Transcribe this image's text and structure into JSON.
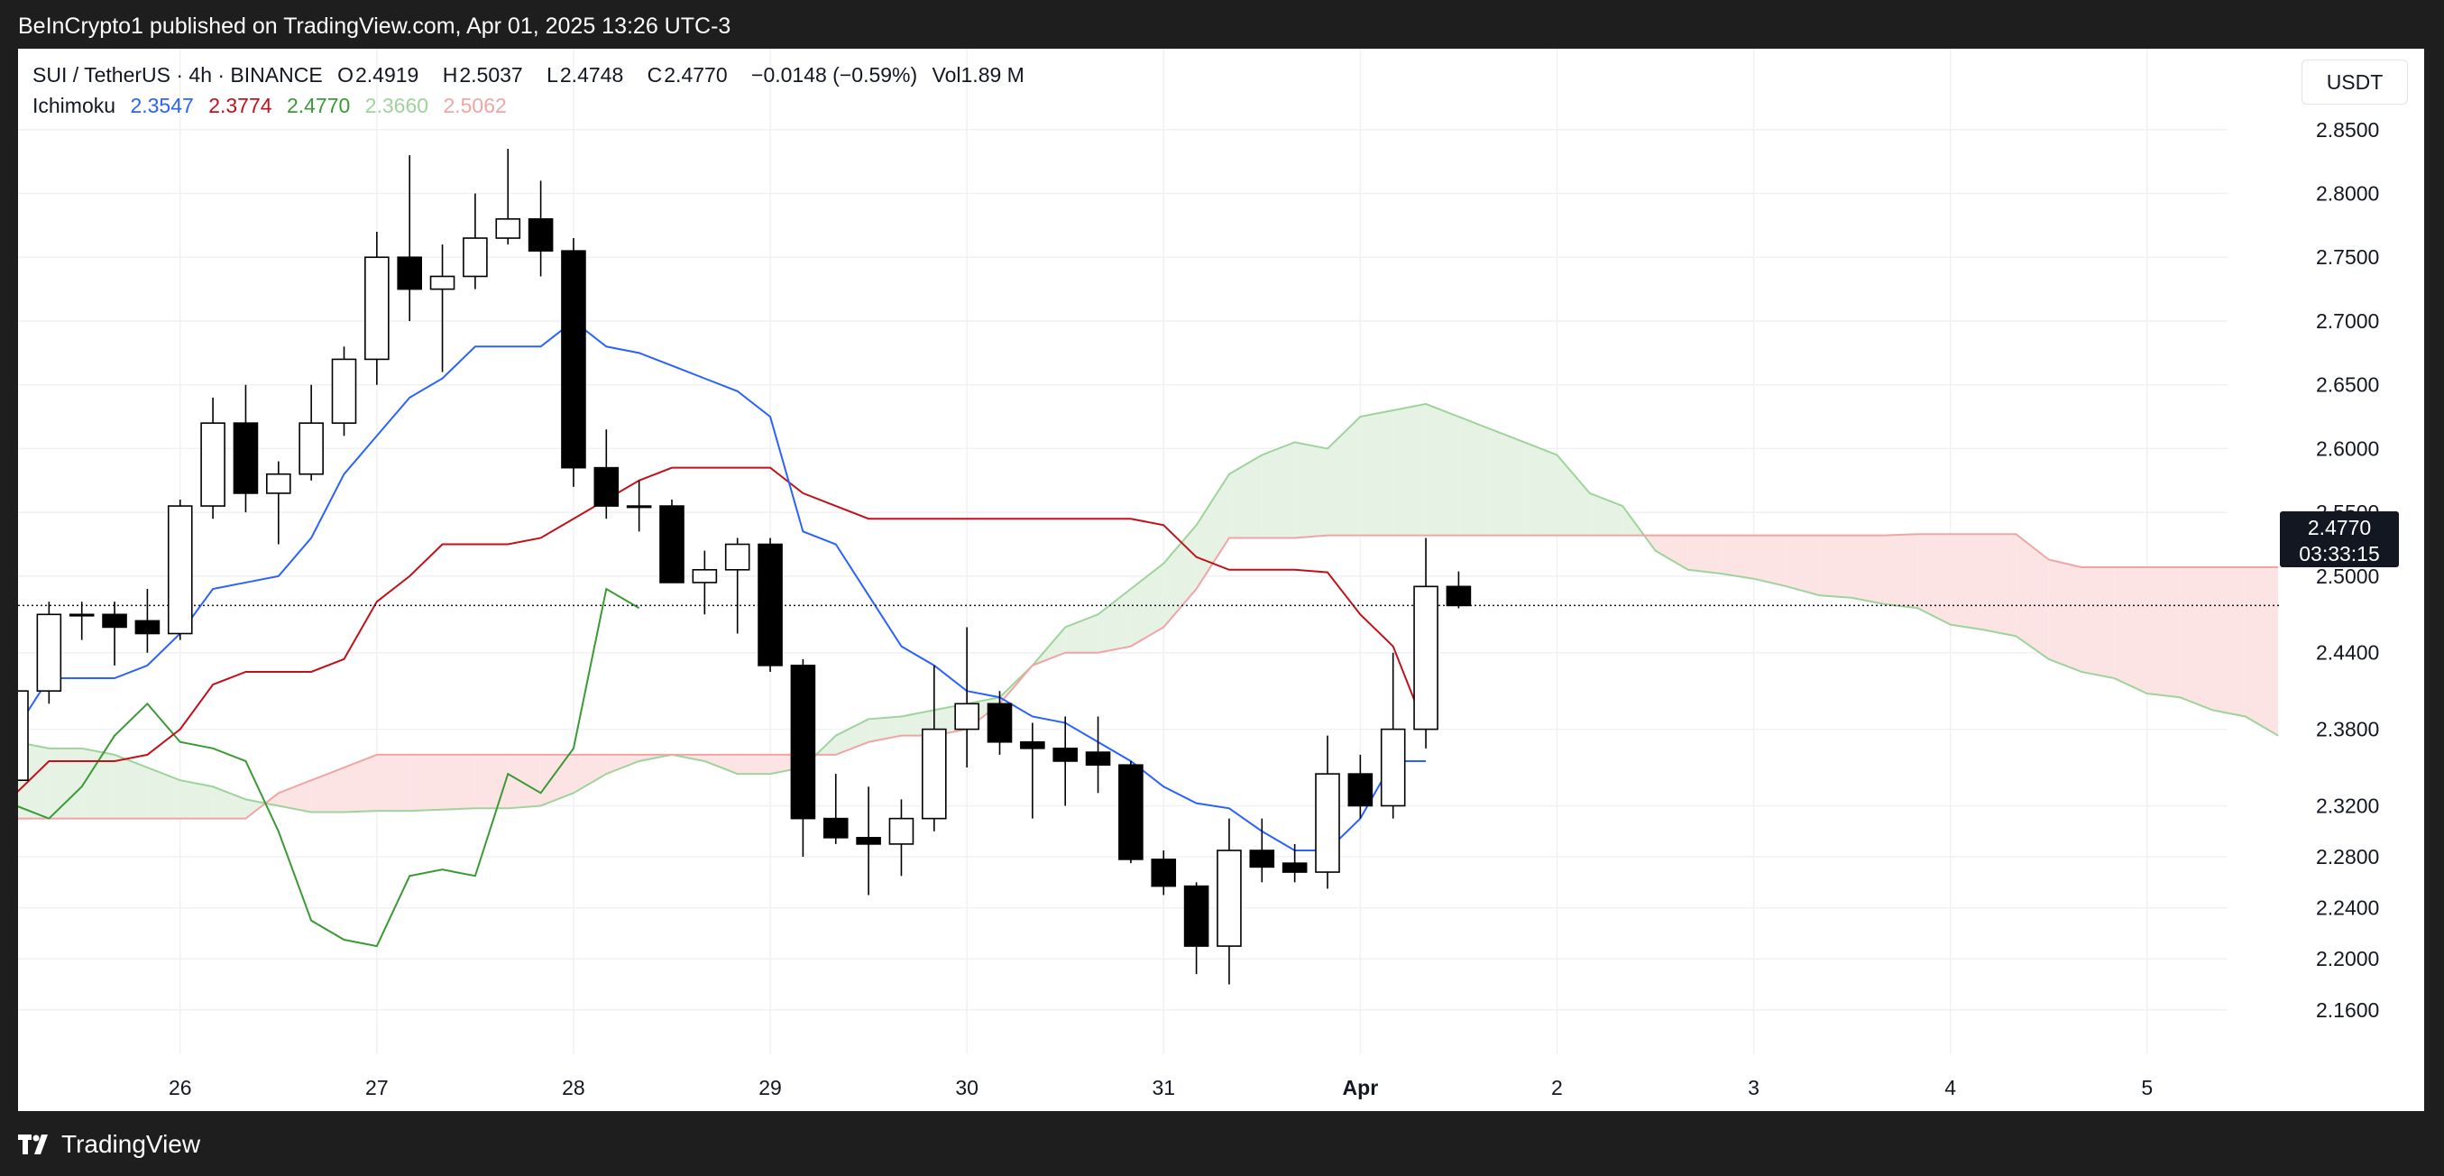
{
  "header": {
    "publisher_line": "BeInCrypto1 published on TradingView.com, Apr 01, 2025 13:26 UTC-3"
  },
  "legend": {
    "symbol": "SUI / TetherUS · 4h · BINANCE",
    "open_label": "O",
    "open": "2.4919",
    "high_label": "H",
    "high": "2.5037",
    "low_label": "L",
    "low": "2.4748",
    "close_label": "C",
    "close": "2.4770",
    "change": "−0.0148 (−0.59%)",
    "volume": "Vol1.89 M",
    "indicator_name": "Ichimoku",
    "indicator_values": [
      "2.3547",
      "2.3774",
      "2.4770",
      "2.3660",
      "2.5062"
    ]
  },
  "currency": "USDT",
  "price_badge": {
    "price": "2.4770",
    "countdown": "03:33:15"
  },
  "footer": {
    "brand": "TradingView"
  },
  "colors": {
    "conversion": "#2962ff",
    "base": "#c2111b",
    "lagging": "#3a9a35",
    "span_a": "#9fd39c",
    "span_b": "#f0a5a5",
    "cloud_bull": "#e6f3e4",
    "cloud_bear": "#fce4e4",
    "grid": "#f0f1f4",
    "axis_text": "#131722",
    "candle_up_fill": "#ffffff",
    "candle_down_fill": "#000000"
  },
  "chart_data": {
    "type": "candlestick",
    "y_ticks": [
      2.85,
      2.8,
      2.75,
      2.7,
      2.65,
      2.6,
      2.55,
      2.5,
      2.44,
      2.38,
      2.32,
      2.28,
      2.24,
      2.2,
      2.16
    ],
    "y_tick_labels": [
      "2.8500",
      "2.8000",
      "2.7500",
      "2.7000",
      "2.6500",
      "2.6000",
      "2.5500",
      "2.5000",
      "2.4400",
      "2.3800",
      "2.3200",
      "2.2800",
      "2.2400",
      "2.2000",
      "2.1600"
    ],
    "x_ticks": [
      {
        "label": "26",
        "t": 5
      },
      {
        "label": "27",
        "t": 11
      },
      {
        "label": "28",
        "t": 17
      },
      {
        "label": "29",
        "t": 23
      },
      {
        "label": "30",
        "t": 29
      },
      {
        "label": "31",
        "t": 35
      },
      {
        "label": "Apr",
        "t": 41,
        "bold": true
      },
      {
        "label": "2",
        "t": 47
      },
      {
        "label": "3",
        "t": 53
      },
      {
        "label": "4",
        "t": 59
      },
      {
        "label": "5",
        "t": 65
      }
    ],
    "candles": [
      {
        "t": 0,
        "o": 2.34,
        "h": 2.45,
        "l": 2.33,
        "c": 2.41
      },
      {
        "t": 1,
        "o": 2.41,
        "h": 2.48,
        "l": 2.4,
        "c": 2.47
      },
      {
        "t": 2,
        "o": 2.47,
        "h": 2.48,
        "l": 2.45,
        "c": 2.47
      },
      {
        "t": 3,
        "o": 2.47,
        "h": 2.48,
        "l": 2.43,
        "c": 2.46
      },
      {
        "t": 4,
        "o": 2.465,
        "h": 2.49,
        "l": 2.44,
        "c": 2.455
      },
      {
        "t": 5,
        "o": 2.455,
        "h": 2.56,
        "l": 2.45,
        "c": 2.555
      },
      {
        "t": 6,
        "o": 2.555,
        "h": 2.64,
        "l": 2.545,
        "c": 2.62
      },
      {
        "t": 7,
        "o": 2.62,
        "h": 2.65,
        "l": 2.55,
        "c": 2.565
      },
      {
        "t": 8,
        "o": 2.565,
        "h": 2.59,
        "l": 2.525,
        "c": 2.58
      },
      {
        "t": 9,
        "o": 2.58,
        "h": 2.65,
        "l": 2.575,
        "c": 2.62
      },
      {
        "t": 10,
        "o": 2.62,
        "h": 2.68,
        "l": 2.61,
        "c": 2.67
      },
      {
        "t": 11,
        "o": 2.67,
        "h": 2.77,
        "l": 2.65,
        "c": 2.75
      },
      {
        "t": 12,
        "o": 2.75,
        "h": 2.83,
        "l": 2.7,
        "c": 2.725
      },
      {
        "t": 13,
        "o": 2.725,
        "h": 2.76,
        "l": 2.66,
        "c": 2.735
      },
      {
        "t": 14,
        "o": 2.735,
        "h": 2.8,
        "l": 2.725,
        "c": 2.765
      },
      {
        "t": 15,
        "o": 2.765,
        "h": 2.835,
        "l": 2.76,
        "c": 2.78
      },
      {
        "t": 16,
        "o": 2.78,
        "h": 2.81,
        "l": 2.735,
        "c": 2.755
      },
      {
        "t": 17,
        "o": 2.755,
        "h": 2.765,
        "l": 2.57,
        "c": 2.585
      },
      {
        "t": 18,
        "o": 2.585,
        "h": 2.615,
        "l": 2.545,
        "c": 2.555
      },
      {
        "t": 19,
        "o": 2.555,
        "h": 2.575,
        "l": 2.535,
        "c": 2.555
      },
      {
        "t": 20,
        "o": 2.555,
        "h": 2.56,
        "l": 2.495,
        "c": 2.495
      },
      {
        "t": 21,
        "o": 2.495,
        "h": 2.52,
        "l": 2.47,
        "c": 2.505
      },
      {
        "t": 22,
        "o": 2.505,
        "h": 2.53,
        "l": 2.455,
        "c": 2.525
      },
      {
        "t": 23,
        "o": 2.525,
        "h": 2.53,
        "l": 2.425,
        "c": 2.43
      },
      {
        "t": 24,
        "o": 2.43,
        "h": 2.435,
        "l": 2.28,
        "c": 2.31
      },
      {
        "t": 25,
        "o": 2.31,
        "h": 2.345,
        "l": 2.29,
        "c": 2.295
      },
      {
        "t": 26,
        "o": 2.295,
        "h": 2.335,
        "l": 2.25,
        "c": 2.29
      },
      {
        "t": 27,
        "o": 2.29,
        "h": 2.325,
        "l": 2.265,
        "c": 2.31
      },
      {
        "t": 28,
        "o": 2.31,
        "h": 2.43,
        "l": 2.3,
        "c": 2.38
      },
      {
        "t": 29,
        "o": 2.38,
        "h": 2.46,
        "l": 2.35,
        "c": 2.4
      },
      {
        "t": 30,
        "o": 2.4,
        "h": 2.41,
        "l": 2.36,
        "c": 2.37
      },
      {
        "t": 31,
        "o": 2.37,
        "h": 2.385,
        "l": 2.31,
        "c": 2.365
      },
      {
        "t": 32,
        "o": 2.365,
        "h": 2.39,
        "l": 2.32,
        "c": 2.355
      },
      {
        "t": 33,
        "o": 2.362,
        "h": 2.39,
        "l": 2.33,
        "c": 2.352
      },
      {
        "t": 34,
        "o": 2.352,
        "h": 2.355,
        "l": 2.275,
        "c": 2.278
      },
      {
        "t": 35,
        "o": 2.278,
        "h": 2.285,
        "l": 2.25,
        "c": 2.257
      },
      {
        "t": 36,
        "o": 2.257,
        "h": 2.26,
        "l": 2.188,
        "c": 2.21
      },
      {
        "t": 37,
        "o": 2.21,
        "h": 2.31,
        "l": 2.18,
        "c": 2.285
      },
      {
        "t": 38,
        "o": 2.285,
        "h": 2.31,
        "l": 2.26,
        "c": 2.272
      },
      {
        "t": 39,
        "o": 2.275,
        "h": 2.29,
        "l": 2.26,
        "c": 2.268
      },
      {
        "t": 40,
        "o": 2.268,
        "h": 2.375,
        "l": 2.255,
        "c": 2.345
      },
      {
        "t": 41,
        "o": 2.345,
        "h": 2.36,
        "l": 2.31,
        "c": 2.32
      },
      {
        "t": 42,
        "o": 2.32,
        "h": 2.44,
        "l": 2.31,
        "c": 2.38
      },
      {
        "t": 43,
        "o": 2.38,
        "h": 2.53,
        "l": 2.365,
        "c": 2.4919
      },
      {
        "t": 44,
        "o": 2.4919,
        "h": 2.5037,
        "l": 2.4748,
        "c": 2.477
      }
    ],
    "conversion_line": [
      [
        0,
        2.38
      ],
      [
        1,
        2.42
      ],
      [
        2,
        2.42
      ],
      [
        3,
        2.42
      ],
      [
        4,
        2.43
      ],
      [
        5,
        2.455
      ],
      [
        6,
        2.49
      ],
      [
        7,
        2.495
      ],
      [
        8,
        2.5
      ],
      [
        9,
        2.53
      ],
      [
        10,
        2.58
      ],
      [
        11,
        2.61
      ],
      [
        12,
        2.64
      ],
      [
        13,
        2.655
      ],
      [
        14,
        2.68
      ],
      [
        15,
        2.68
      ],
      [
        16,
        2.68
      ],
      [
        17,
        2.7
      ],
      [
        18,
        2.68
      ],
      [
        19,
        2.675
      ],
      [
        20,
        2.665
      ],
      [
        21,
        2.655
      ],
      [
        22,
        2.645
      ],
      [
        23,
        2.625
      ],
      [
        24,
        2.535
      ],
      [
        25,
        2.525
      ],
      [
        26,
        2.485
      ],
      [
        27,
        2.445
      ],
      [
        28,
        2.43
      ],
      [
        29,
        2.41
      ],
      [
        30,
        2.405
      ],
      [
        31,
        2.39
      ],
      [
        32,
        2.385
      ],
      [
        33,
        2.37
      ],
      [
        34,
        2.355
      ],
      [
        35,
        2.335
      ],
      [
        36,
        2.322
      ],
      [
        37,
        2.318
      ],
      [
        38,
        2.3
      ],
      [
        39,
        2.285
      ],
      [
        40,
        2.285
      ],
      [
        41,
        2.31
      ],
      [
        42,
        2.355
      ],
      [
        43,
        2.355
      ]
    ],
    "base_line": [
      [
        0,
        2.33
      ],
      [
        1,
        2.355
      ],
      [
        2,
        2.355
      ],
      [
        3,
        2.355
      ],
      [
        4,
        2.36
      ],
      [
        5,
        2.38
      ],
      [
        6,
        2.415
      ],
      [
        7,
        2.425
      ],
      [
        8,
        2.425
      ],
      [
        9,
        2.425
      ],
      [
        10,
        2.435
      ],
      [
        11,
        2.48
      ],
      [
        12,
        2.5
      ],
      [
        13,
        2.525
      ],
      [
        14,
        2.525
      ],
      [
        15,
        2.525
      ],
      [
        16,
        2.53
      ],
      [
        17,
        2.545
      ],
      [
        18,
        2.56
      ],
      [
        19,
        2.575
      ],
      [
        20,
        2.585
      ],
      [
        21,
        2.585
      ],
      [
        22,
        2.585
      ],
      [
        23,
        2.585
      ],
      [
        24,
        2.565
      ],
      [
        25,
        2.555
      ],
      [
        26,
        2.545
      ],
      [
        27,
        2.545
      ],
      [
        28,
        2.545
      ],
      [
        29,
        2.545
      ],
      [
        30,
        2.545
      ],
      [
        31,
        2.545
      ],
      [
        32,
        2.545
      ],
      [
        33,
        2.545
      ],
      [
        34,
        2.545
      ],
      [
        35,
        2.54
      ],
      [
        36,
        2.515
      ],
      [
        37,
        2.505
      ],
      [
        38,
        2.505
      ],
      [
        39,
        2.505
      ],
      [
        40,
        2.503
      ],
      [
        41,
        2.47
      ],
      [
        42,
        2.445
      ],
      [
        43,
        2.38
      ]
    ],
    "lagging_span": [
      [
        0,
        2.32
      ],
      [
        1,
        2.31
      ],
      [
        2,
        2.335
      ],
      [
        3,
        2.375
      ],
      [
        4,
        2.4
      ],
      [
        5,
        2.37
      ],
      [
        6,
        2.365
      ],
      [
        7,
        2.355
      ],
      [
        8,
        2.3
      ],
      [
        9,
        2.23
      ],
      [
        10,
        2.215
      ],
      [
        11,
        2.21
      ],
      [
        12,
        2.265
      ],
      [
        13,
        2.27
      ],
      [
        14,
        2.265
      ],
      [
        15,
        2.345
      ],
      [
        16,
        2.33
      ],
      [
        17,
        2.365
      ],
      [
        18,
        2.49
      ],
      [
        19,
        2.475
      ]
    ],
    "span_a": [
      [
        0,
        2.37
      ],
      [
        1,
        2.365
      ],
      [
        2,
        2.365
      ],
      [
        3,
        2.36
      ],
      [
        4,
        2.35
      ],
      [
        5,
        2.34
      ],
      [
        6,
        2.335
      ],
      [
        7,
        2.325
      ],
      [
        8,
        2.32
      ],
      [
        9,
        2.315
      ],
      [
        10,
        2.315
      ],
      [
        11,
        2.316
      ],
      [
        12,
        2.316
      ],
      [
        13,
        2.317
      ],
      [
        14,
        2.318
      ],
      [
        15,
        2.318
      ],
      [
        16,
        2.32
      ],
      [
        17,
        2.33
      ],
      [
        18,
        2.345
      ],
      [
        19,
        2.355
      ],
      [
        20,
        2.36
      ],
      [
        21,
        2.355
      ],
      [
        22,
        2.345
      ],
      [
        23,
        2.345
      ],
      [
        24,
        2.35
      ],
      [
        25,
        2.375
      ],
      [
        26,
        2.388
      ],
      [
        27,
        2.39
      ],
      [
        28,
        2.395
      ],
      [
        29,
        2.4
      ],
      [
        30,
        2.405
      ],
      [
        31,
        2.43
      ],
      [
        32,
        2.46
      ],
      [
        33,
        2.47
      ],
      [
        34,
        2.49
      ],
      [
        35,
        2.51
      ],
      [
        36,
        2.54
      ],
      [
        37,
        2.58
      ],
      [
        38,
        2.595
      ],
      [
        39,
        2.605
      ],
      [
        40,
        2.6
      ],
      [
        41,
        2.625
      ],
      [
        42,
        2.63
      ],
      [
        43,
        2.635
      ],
      [
        44,
        2.625
      ],
      [
        45,
        2.615
      ],
      [
        46,
        2.605
      ],
      [
        47,
        2.595
      ],
      [
        48,
        2.565
      ],
      [
        49,
        2.555
      ],
      [
        50,
        2.52
      ],
      [
        51,
        2.505
      ],
      [
        52,
        2.502
      ],
      [
        53,
        2.498
      ],
      [
        54,
        2.492
      ],
      [
        55,
        2.485
      ],
      [
        56,
        2.483
      ],
      [
        57,
        2.478
      ],
      [
        58,
        2.475
      ],
      [
        59,
        2.462
      ],
      [
        60,
        2.458
      ],
      [
        61,
        2.453
      ],
      [
        62,
        2.435
      ],
      [
        63,
        2.425
      ],
      [
        64,
        2.42
      ],
      [
        65,
        2.408
      ],
      [
        66,
        2.405
      ],
      [
        67,
        2.395
      ],
      [
        68,
        2.39
      ],
      [
        69,
        2.375
      ]
    ],
    "span_b": [
      [
        0,
        2.31
      ],
      [
        1,
        2.31
      ],
      [
        2,
        2.31
      ],
      [
        3,
        2.31
      ],
      [
        4,
        2.31
      ],
      [
        5,
        2.31
      ],
      [
        6,
        2.31
      ],
      [
        7,
        2.31
      ],
      [
        8,
        2.33
      ],
      [
        9,
        2.34
      ],
      [
        10,
        2.35
      ],
      [
        11,
        2.36
      ],
      [
        12,
        2.36
      ],
      [
        13,
        2.36
      ],
      [
        14,
        2.36
      ],
      [
        15,
        2.36
      ],
      [
        16,
        2.36
      ],
      [
        17,
        2.36
      ],
      [
        18,
        2.36
      ],
      [
        19,
        2.36
      ],
      [
        20,
        2.36
      ],
      [
        21,
        2.36
      ],
      [
        22,
        2.36
      ],
      [
        23,
        2.36
      ],
      [
        24,
        2.36
      ],
      [
        25,
        2.36
      ],
      [
        26,
        2.37
      ],
      [
        27,
        2.375
      ],
      [
        28,
        2.375
      ],
      [
        29,
        2.38
      ],
      [
        30,
        2.4
      ],
      [
        31,
        2.43
      ],
      [
        32,
        2.44
      ],
      [
        33,
        2.44
      ],
      [
        34,
        2.445
      ],
      [
        35,
        2.46
      ],
      [
        36,
        2.49
      ],
      [
        37,
        2.53
      ],
      [
        38,
        2.53
      ],
      [
        39,
        2.53
      ],
      [
        40,
        2.532
      ],
      [
        41,
        2.532
      ],
      [
        42,
        2.532
      ],
      [
        43,
        2.532
      ],
      [
        44,
        2.532
      ],
      [
        45,
        2.532
      ],
      [
        46,
        2.532
      ],
      [
        47,
        2.532
      ],
      [
        48,
        2.532
      ],
      [
        49,
        2.532
      ],
      [
        50,
        2.532
      ],
      [
        51,
        2.532
      ],
      [
        52,
        2.532
      ],
      [
        53,
        2.532
      ],
      [
        54,
        2.532
      ],
      [
        55,
        2.532
      ],
      [
        56,
        2.532
      ],
      [
        57,
        2.532
      ],
      [
        58,
        2.533
      ],
      [
        59,
        2.533
      ],
      [
        60,
        2.533
      ],
      [
        61,
        2.533
      ],
      [
        62,
        2.513
      ],
      [
        63,
        2.507
      ],
      [
        64,
        2.507
      ],
      [
        65,
        2.507
      ],
      [
        66,
        2.507
      ],
      [
        67,
        2.507
      ],
      [
        68,
        2.507
      ],
      [
        69,
        2.507
      ]
    ],
    "current_price": 2.477
  }
}
